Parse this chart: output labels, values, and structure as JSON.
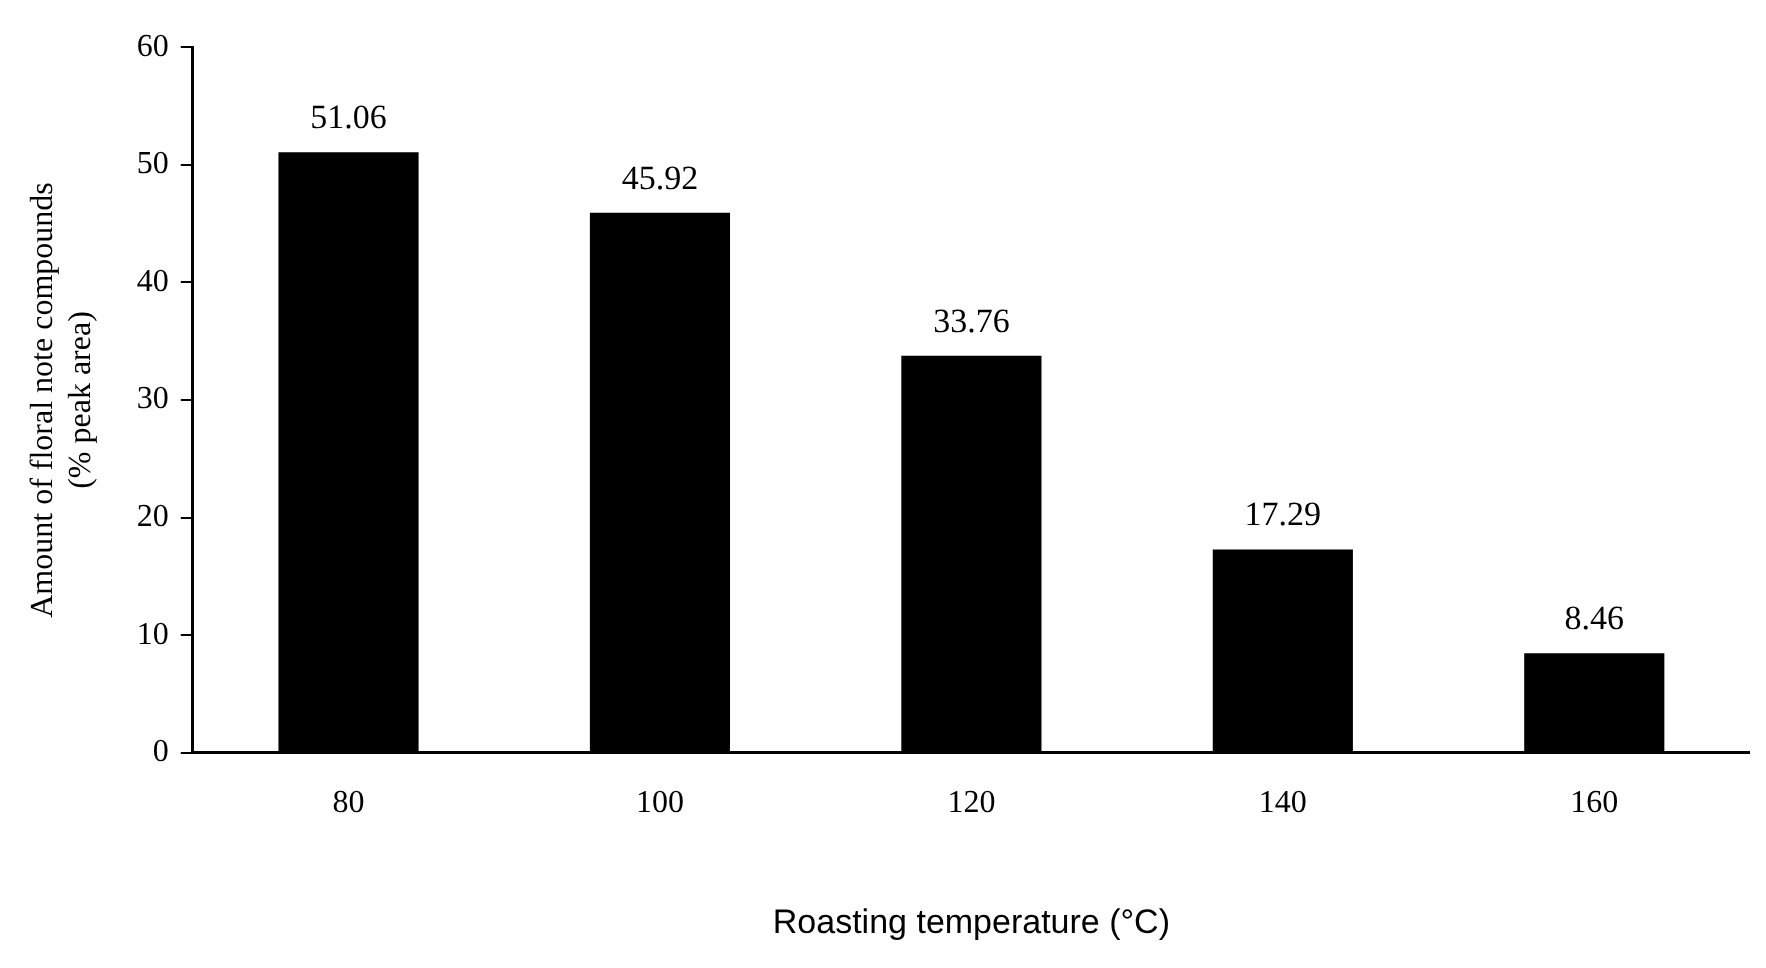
{
  "chart_data": {
    "type": "bar",
    "xlabel": "Roasting temperature (°C)",
    "ylabel": "Amount of floral note compounds\n(% peak area)",
    "categories": [
      "80",
      "100",
      "120",
      "140",
      "160"
    ],
    "values": [
      51.06,
      45.92,
      33.76,
      17.29,
      8.46
    ],
    "color": "#000000",
    "ylim": [
      0,
      60
    ],
    "yticks": [
      0,
      10,
      20,
      30,
      40,
      50,
      60
    ],
    "grid": false,
    "legend": false,
    "data_labels": true
  }
}
